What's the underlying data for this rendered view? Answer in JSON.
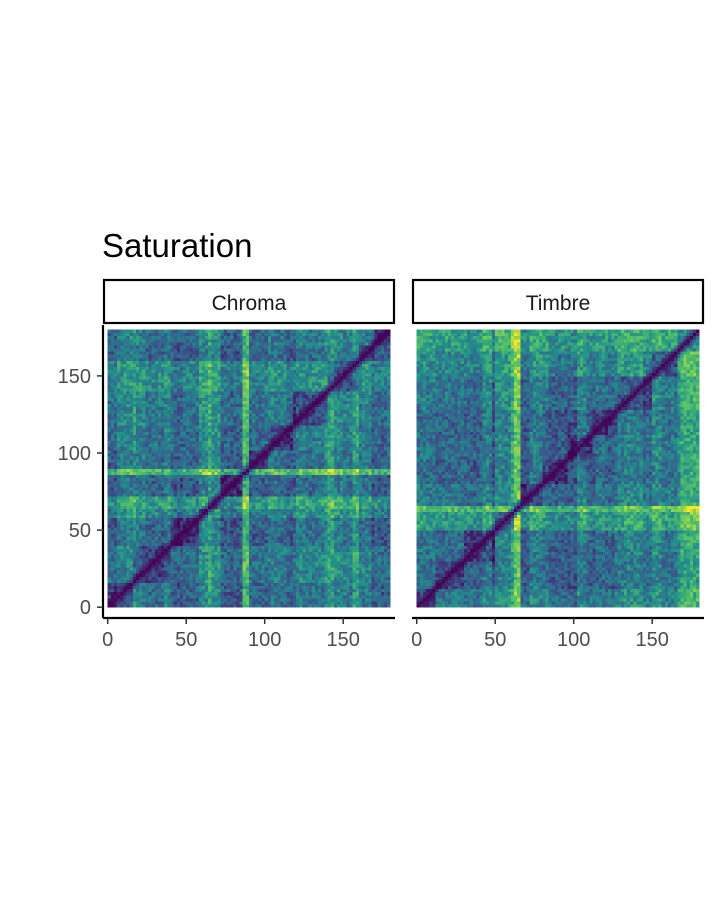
{
  "chart_data": {
    "type": "heatmap",
    "title": "Saturation",
    "xlabel": "",
    "ylabel": "",
    "xlim": [
      -3,
      183
    ],
    "ylim": [
      -7,
      183
    ],
    "x_ticks": [
      0,
      50,
      100,
      150
    ],
    "y_ticks": [
      0,
      50,
      100,
      150
    ],
    "x_tick_labels": [
      "0",
      "50",
      "100",
      "150"
    ],
    "y_tick_labels": [
      "0",
      "50",
      "100",
      "150"
    ],
    "matrix_size": 180,
    "colormap": "viridis",
    "colormap_stops": [
      "#440154",
      "#3b528b",
      "#21918c",
      "#5ec962",
      "#fde725"
    ],
    "panels": [
      {
        "name": "Chroma",
        "segment_bounds": [
          0,
          16,
          40,
          58,
          64,
          72,
          86,
          90,
          102,
          118,
          140,
          160,
          170,
          180
        ],
        "segment_profile": [
          0.35,
          0.45,
          0.3,
          0.55,
          0.75,
          0.3,
          1.0,
          0.35,
          0.4,
          0.45,
          0.6,
          0.3,
          0.4
        ],
        "diagonal_value": 0.0
      },
      {
        "name": "Timbre",
        "segment_bounds": [
          0,
          12,
          30,
          50,
          62,
          66,
          80,
          96,
          112,
          128,
          150,
          165,
          180
        ],
        "segment_profile": [
          0.45,
          0.3,
          0.35,
          0.7,
          1.0,
          0.4,
          0.3,
          0.35,
          0.3,
          0.4,
          0.55,
          0.75
        ],
        "diagonal_value": 0.0
      }
    ]
  }
}
